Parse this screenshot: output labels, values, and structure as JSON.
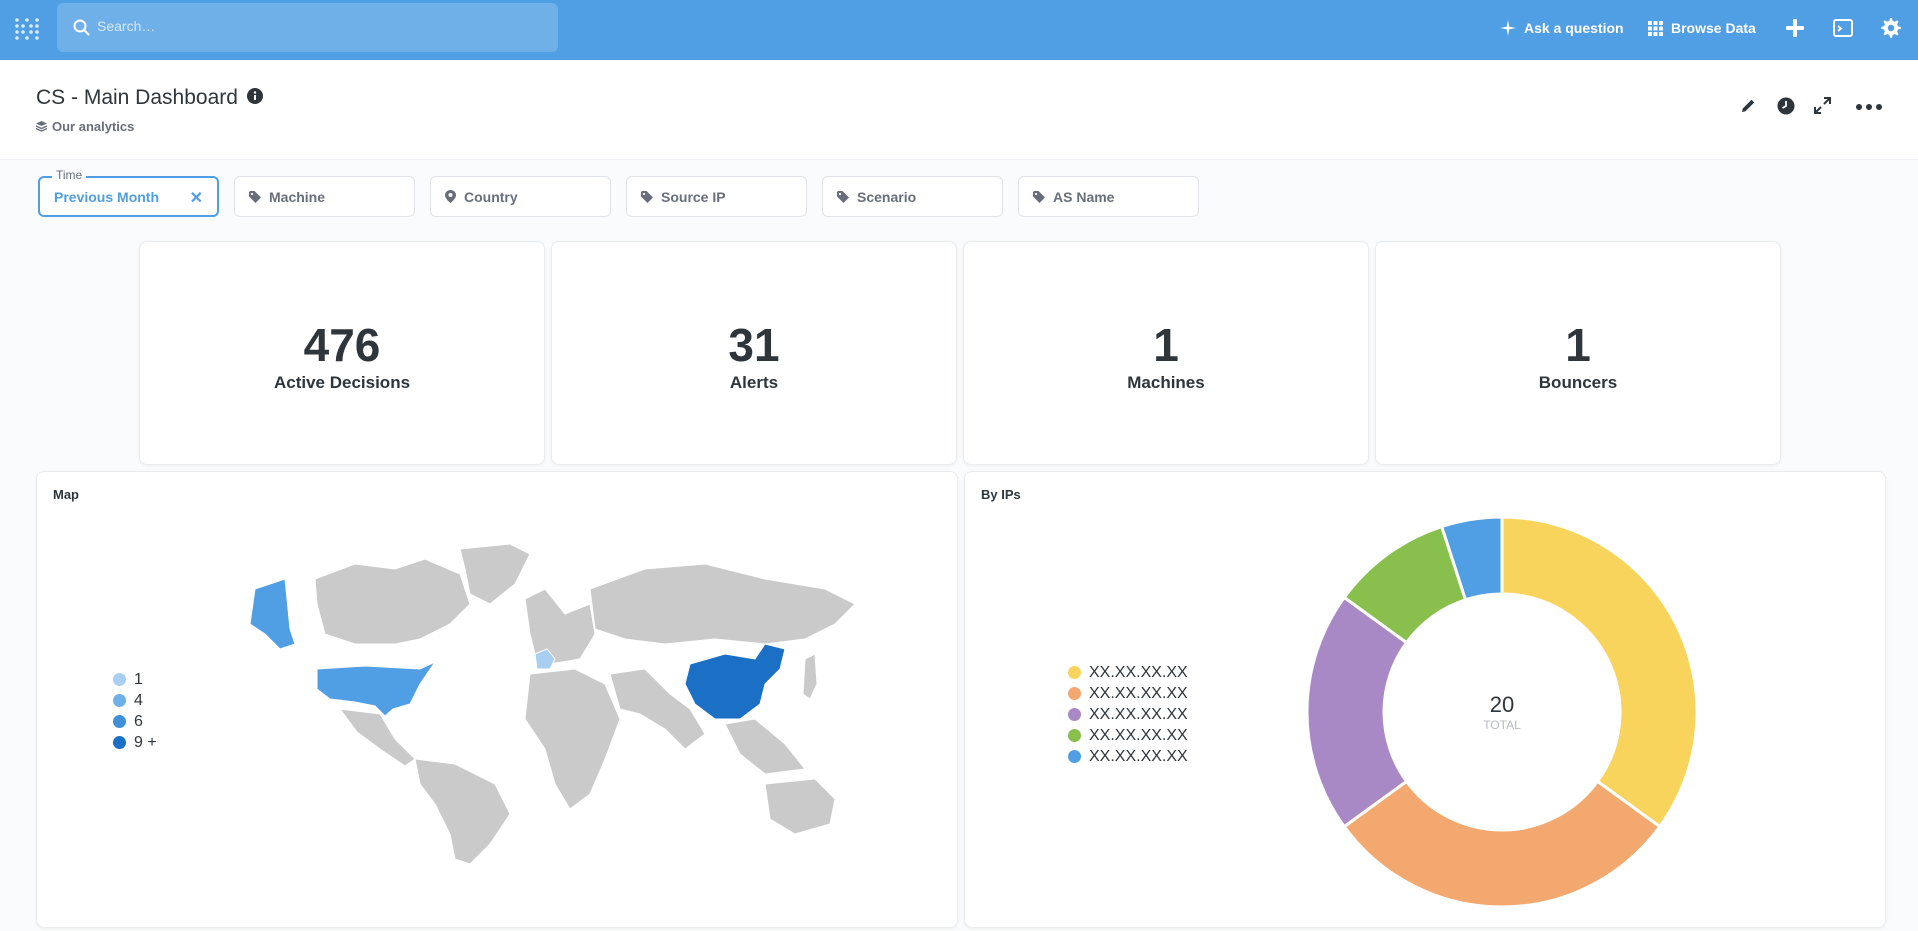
{
  "nav": {
    "search_placeholder": "Search…",
    "ask_question_label": "Ask a question",
    "browse_data_label": "Browse Data"
  },
  "header": {
    "title": "CS - Main Dashboard",
    "collection": "Our analytics"
  },
  "filters": {
    "time": {
      "legend": "Time",
      "value": "Previous Month"
    },
    "items": [
      "Machine",
      "Country",
      "Source IP",
      "Scenario",
      "AS Name"
    ]
  },
  "scalars": [
    {
      "value": "476",
      "label": "Active Decisions"
    },
    {
      "value": "31",
      "label": "Alerts"
    },
    {
      "value": "1",
      "label": "Machines"
    },
    {
      "value": "1",
      "label": "Bouncers"
    }
  ],
  "map_card": {
    "title": "Map",
    "legend": [
      {
        "label": "1",
        "color": "#a8cff1"
      },
      {
        "label": "4",
        "color": "#6fb0e9"
      },
      {
        "label": "6",
        "color": "#3f8fd9"
      },
      {
        "label": "9 +",
        "color": "#1b6fc4"
      }
    ],
    "highlighted_countries": [
      "Alaska/USA",
      "USA",
      "France",
      "China"
    ]
  },
  "pie_card": {
    "title": "By IPs",
    "total_value": "20",
    "total_label": "TOTAL"
  },
  "chart_data": {
    "type": "pie",
    "categories": [
      "XX.XX.XX.XX",
      "XX.XX.XX.XX",
      "XX.XX.XX.XX",
      "XX.XX.XX.XX",
      "XX.XX.XX.XX"
    ],
    "values": [
      7,
      6,
      4,
      2,
      1
    ],
    "colors": [
      "#f9d45c",
      "#f2a86f",
      "#a989c5",
      "#88bf4d",
      "#509ee3"
    ],
    "total": 20,
    "legend_position": "left"
  },
  "colors": {
    "brand": "#509ee3",
    "text": "#2e353b",
    "muted": "#696e7b"
  }
}
